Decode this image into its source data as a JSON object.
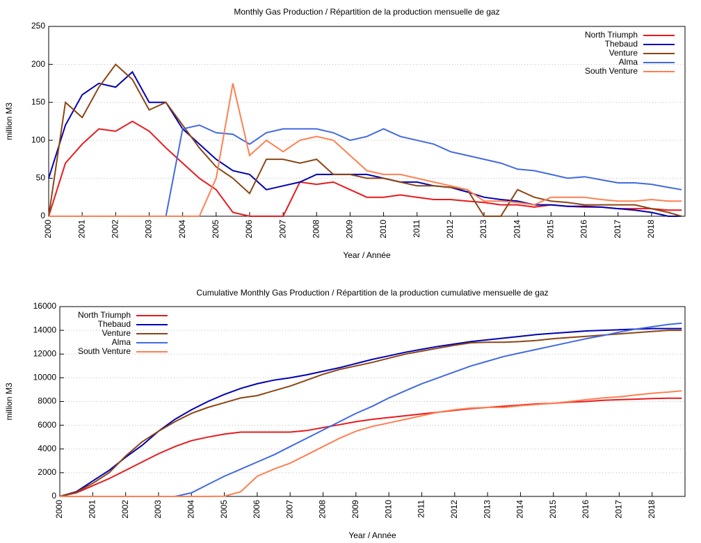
{
  "chart_data": [
    {
      "type": "line",
      "title": "Monthly Gas Production / Répartition de la production mensuelle de gaz",
      "x_label": "Year / Année",
      "y_label": "million M3",
      "x": [
        2000,
        2000.5,
        2001,
        2001.5,
        2002,
        2002.5,
        2003,
        2003.5,
        2004,
        2004.5,
        2005,
        2005.5,
        2006,
        2006.5,
        2007,
        2007.5,
        2008,
        2008.5,
        2009,
        2009.5,
        2010,
        2010.5,
        2011,
        2011.5,
        2012,
        2012.5,
        2013,
        2013.5,
        2014,
        2014.5,
        2015,
        2015.5,
        2016,
        2016.5,
        2017,
        2017.5,
        2018,
        2018.5,
        2018.9
      ],
      "xlim": [
        2000,
        2019
      ],
      "xticks": [
        2000,
        2001,
        2002,
        2003,
        2004,
        2005,
        2006,
        2007,
        2008,
        2009,
        2010,
        2011,
        2012,
        2013,
        2014,
        2015,
        2016,
        2017,
        2018
      ],
      "ylim": [
        0,
        250
      ],
      "yticks": [
        0,
        50,
        100,
        150,
        200,
        250
      ],
      "grid": true,
      "legend": "upper right",
      "series": [
        {
          "name": "North Triumph",
          "color": "#e8191c",
          "values": [
            0,
            70,
            95,
            115,
            112,
            125,
            112,
            90,
            70,
            50,
            35,
            5,
            0,
            0,
            0,
            45,
            42,
            45,
            35,
            25,
            25,
            28,
            25,
            22,
            22,
            20,
            18,
            15,
            15,
            12,
            15,
            13,
            12,
            12,
            10,
            10,
            10,
            8,
            8
          ]
        },
        {
          "name": "Thebaud",
          "color": "#0000b4",
          "values": [
            50,
            120,
            160,
            175,
            170,
            190,
            150,
            150,
            115,
            95,
            75,
            60,
            55,
            35,
            40,
            45,
            55,
            55,
            55,
            55,
            50,
            45,
            45,
            40,
            38,
            32,
            25,
            22,
            20,
            15,
            15,
            13,
            13,
            12,
            10,
            8,
            5,
            0,
            0
          ]
        },
        {
          "name": "Venture",
          "color": "#8b4513",
          "values": [
            0,
            150,
            130,
            170,
            200,
            180,
            140,
            150,
            120,
            90,
            65,
            50,
            30,
            75,
            75,
            70,
            75,
            55,
            55,
            50,
            50,
            45,
            40,
            40,
            38,
            35,
            0,
            0,
            35,
            25,
            20,
            18,
            15,
            15,
            15,
            15,
            10,
            5,
            0
          ]
        },
        {
          "name": "Alma",
          "color": "#4169e1",
          "values": [
            0,
            0,
            0,
            0,
            0,
            0,
            0,
            0,
            115,
            120,
            110,
            108,
            95,
            110,
            115,
            115,
            115,
            110,
            100,
            105,
            115,
            105,
            100,
            95,
            85,
            80,
            75,
            70,
            62,
            60,
            55,
            50,
            52,
            48,
            44,
            44,
            42,
            38,
            35
          ]
        },
        {
          "name": "South Venture",
          "color": "#ff7f50",
          "values": [
            0,
            0,
            0,
            0,
            0,
            0,
            0,
            0,
            0,
            0,
            50,
            175,
            80,
            100,
            85,
            100,
            105,
            100,
            80,
            60,
            55,
            55,
            50,
            45,
            40,
            35,
            20,
            20,
            18,
            15,
            25,
            25,
            25,
            22,
            20,
            20,
            22,
            20,
            20
          ]
        }
      ]
    },
    {
      "type": "line",
      "title": "Cumulative Monthly Gas Production / Répartition de la production cumulative mensuelle de gaz",
      "x_label": "Year / Année",
      "y_label": "million M3",
      "x": [
        2000,
        2000.5,
        2001,
        2001.5,
        2002,
        2002.5,
        2003,
        2003.5,
        2004,
        2004.5,
        2005,
        2005.5,
        2006,
        2006.5,
        2007,
        2007.5,
        2008,
        2008.5,
        2009,
        2009.5,
        2010,
        2010.5,
        2011,
        2011.5,
        2012,
        2012.5,
        2013,
        2013.5,
        2014,
        2014.5,
        2015,
        2015.5,
        2016,
        2016.5,
        2017,
        2017.5,
        2018,
        2018.5,
        2018.9
      ],
      "xlim": [
        2000,
        2019
      ],
      "xticks": [
        2000,
        2001,
        2002,
        2003,
        2004,
        2005,
        2006,
        2007,
        2008,
        2009,
        2010,
        2011,
        2012,
        2013,
        2014,
        2015,
        2016,
        2017,
        2018
      ],
      "ylim": [
        0,
        16000
      ],
      "yticks": [
        0,
        2000,
        4000,
        6000,
        8000,
        10000,
        12000,
        14000,
        16000
      ],
      "grid": true,
      "legend": "upper left",
      "series": [
        {
          "name": "North Triumph",
          "color": "#e8191c",
          "values": [
            0,
            300,
            900,
            1500,
            2200,
            2900,
            3600,
            4200,
            4700,
            5000,
            5250,
            5420,
            5420,
            5420,
            5420,
            5550,
            5800,
            6050,
            6300,
            6500,
            6650,
            6800,
            6950,
            7100,
            7250,
            7400,
            7500,
            7600,
            7700,
            7800,
            7850,
            7950,
            8000,
            8100,
            8150,
            8200,
            8250,
            8280,
            8280
          ]
        },
        {
          "name": "Thebaud",
          "color": "#0000b4",
          "values": [
            0,
            400,
            1300,
            2200,
            3300,
            4300,
            5500,
            6500,
            7300,
            8000,
            8600,
            9100,
            9500,
            9800,
            10000,
            10250,
            10550,
            10850,
            11200,
            11550,
            11850,
            12150,
            12400,
            12650,
            12850,
            13050,
            13200,
            13350,
            13500,
            13650,
            13750,
            13850,
            13950,
            14000,
            14050,
            14100,
            14150,
            14150,
            14150
          ]
        },
        {
          "name": "Venture",
          "color": "#8b4513",
          "values": [
            0,
            350,
            1100,
            2000,
            3400,
            4600,
            5500,
            6300,
            7000,
            7500,
            7900,
            8300,
            8500,
            8900,
            9300,
            9800,
            10300,
            10700,
            11000,
            11300,
            11650,
            12000,
            12250,
            12500,
            12750,
            12950,
            13000,
            13000,
            13050,
            13150,
            13300,
            13400,
            13500,
            13600,
            13700,
            13800,
            13900,
            14000,
            14000
          ]
        },
        {
          "name": "Alma",
          "color": "#4169e1",
          "values": [
            0,
            0,
            0,
            0,
            0,
            0,
            0,
            0,
            300,
            1000,
            1700,
            2300,
            2900,
            3500,
            4200,
            4900,
            5600,
            6300,
            7000,
            7600,
            8300,
            8900,
            9500,
            10000,
            10500,
            11000,
            11400,
            11800,
            12100,
            12400,
            12700,
            13000,
            13300,
            13550,
            13850,
            14100,
            14300,
            14500,
            14600
          ]
        },
        {
          "name": "South Venture",
          "color": "#ff7f50",
          "values": [
            0,
            0,
            0,
            0,
            0,
            0,
            0,
            0,
            0,
            0,
            20,
            400,
            1700,
            2300,
            2800,
            3500,
            4200,
            4900,
            5500,
            5900,
            6200,
            6500,
            6800,
            7100,
            7300,
            7450,
            7500,
            7500,
            7650,
            7750,
            7850,
            8000,
            8150,
            8300,
            8400,
            8550,
            8700,
            8800,
            8900
          ]
        }
      ]
    }
  ]
}
